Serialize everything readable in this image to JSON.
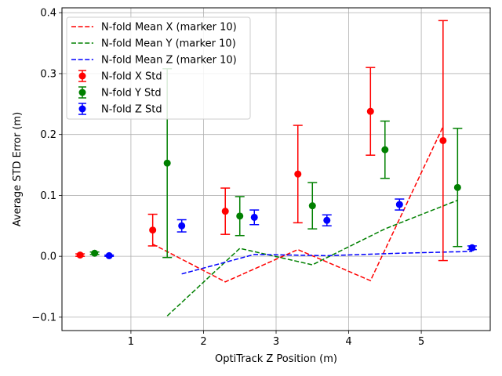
{
  "chart_data": {
    "type": "line",
    "title": "",
    "xlabel": "OptiTrack Z Position (m)",
    "ylabel": "Average STD Error (m)",
    "xlim": [
      0.05,
      5.95
    ],
    "ylim": [
      -0.122,
      0.408
    ],
    "xticks": [
      1,
      2,
      3,
      4,
      5
    ],
    "yticks": [
      -0.1,
      0.0,
      0.1,
      0.2,
      0.3,
      0.4
    ],
    "ytick_labels": [
      "−0.1",
      "0.0",
      "0.1",
      "0.2",
      "0.3",
      "0.4"
    ],
    "grid": true,
    "legend_position": "top-left",
    "line_series": [
      {
        "name": "N-fold Mean X (marker 10)",
        "color": "#ff0000",
        "style": "dashed",
        "x": [
          1.3,
          2.3,
          3.3,
          4.3,
          5.3
        ],
        "y": [
          0.02,
          -0.042,
          0.011,
          -0.04,
          0.213
        ]
      },
      {
        "name": "N-fold Mean Y (marker 10)",
        "color": "#008000",
        "style": "dashed",
        "x": [
          1.5,
          2.5,
          3.5,
          4.5,
          5.5
        ],
        "y": [
          -0.098,
          0.013,
          -0.014,
          0.045,
          0.092
        ]
      },
      {
        "name": "N-fold Mean Z (marker 10)",
        "color": "#0000ff",
        "style": "dashed",
        "x": [
          1.7,
          2.7,
          3.7,
          4.7,
          5.7
        ],
        "y": [
          -0.029,
          0.003,
          0.001,
          0.005,
          0.008
        ]
      }
    ],
    "errorbar_series": [
      {
        "name": "N-fold X Std",
        "color": "#ff0000",
        "x": [
          0.3,
          1.3,
          2.3,
          3.3,
          4.3,
          5.3
        ],
        "y": [
          0.002,
          0.043,
          0.074,
          0.135,
          0.238,
          0.19
        ],
        "err": [
          0.002,
          0.026,
          0.038,
          0.08,
          0.072,
          0.197
        ]
      },
      {
        "name": "N-fold Y Std",
        "color": "#008000",
        "x": [
          0.5,
          1.5,
          2.5,
          3.5,
          4.5,
          5.5
        ],
        "y": [
          0.005,
          0.153,
          0.066,
          0.083,
          0.175,
          0.113
        ],
        "err": [
          0.002,
          0.155,
          0.032,
          0.038,
          0.047,
          0.097
        ]
      },
      {
        "name": "N-fold Z Std",
        "color": "#0000ff",
        "x": [
          0.7,
          1.7,
          2.7,
          3.7,
          4.7,
          5.7
        ],
        "y": [
          0.001,
          0.05,
          0.064,
          0.059,
          0.085,
          0.014
        ],
        "err": [
          0.001,
          0.01,
          0.012,
          0.009,
          0.009,
          0.003
        ]
      }
    ]
  }
}
